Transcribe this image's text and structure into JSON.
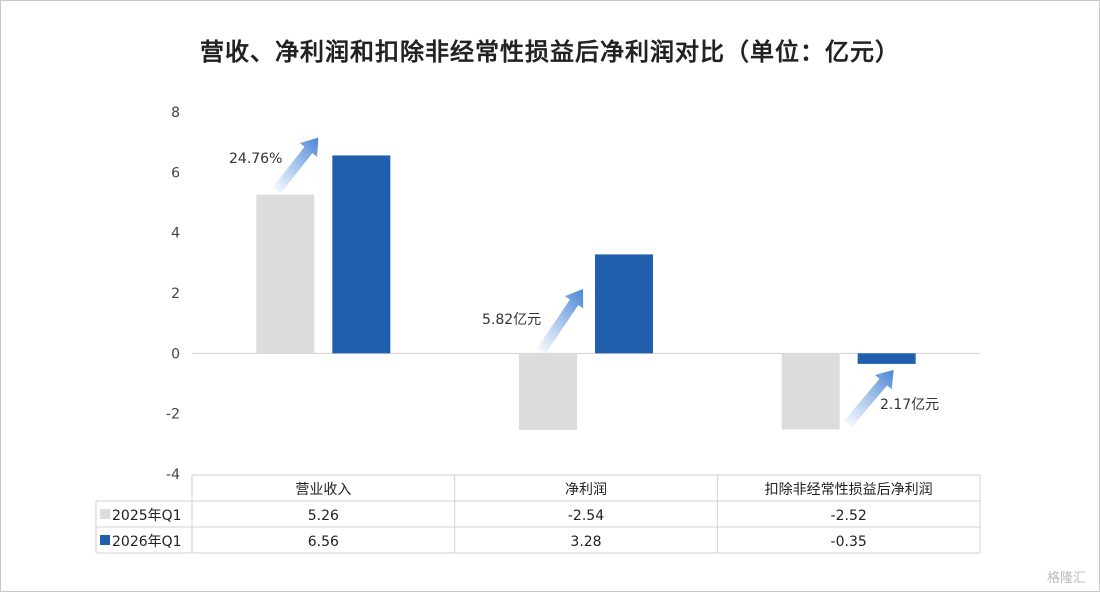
{
  "chart_data": {
    "type": "bar",
    "title": "营收、净利润和扣除非经常性损益后净利润对比（单位：亿元）",
    "categories": [
      "营业收入",
      "净利润",
      "扣除非经常性损益后净利润"
    ],
    "series": [
      {
        "name": "2025年Q1",
        "values": [
          5.26,
          -2.54,
          -2.52
        ],
        "labels": [
          "5.26",
          "-2.54",
          "-2.52"
        ],
        "color": "#dcdcdc"
      },
      {
        "name": "2026年Q1",
        "values": [
          6.56,
          3.28,
          -0.35
        ],
        "labels": [
          "6.56",
          "3.28",
          "-0.35"
        ],
        "color": "#1f5fae"
      }
    ],
    "ylim": [
      -4,
      8
    ],
    "yticks": [
      "8",
      "6",
      "4",
      "2",
      "0",
      "-2",
      "-4"
    ],
    "annotations": [
      "24.76%",
      "5.82亿元",
      "2.17亿元"
    ],
    "data_table": true,
    "grid": false
  },
  "watermark": "格隆汇"
}
